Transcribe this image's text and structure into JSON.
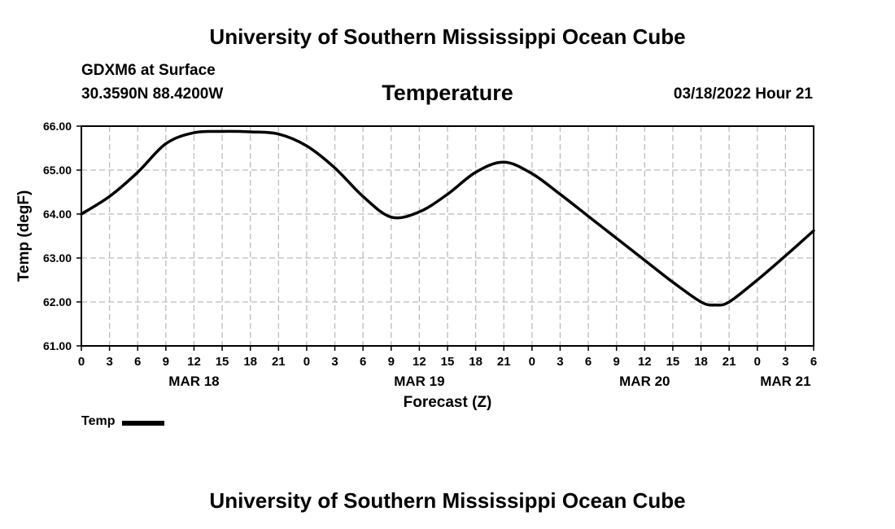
{
  "header": {
    "institution": "University of Southern Mississippi Ocean Cube",
    "station": "GDXM6 at Surface",
    "coords": "30.3590N  88.4200W",
    "datetime": "03/18/2022 Hour 21"
  },
  "footer": {
    "institution": "University of Southern Mississippi Ocean Cube"
  },
  "legend": {
    "label": "Temp",
    "color": "#000000"
  },
  "chart_data": {
    "type": "line",
    "title": "Temperature",
    "xlabel": "Forecast (Z)",
    "ylabel": "Temp (degF)",
    "ylim": [
      61.0,
      66.0
    ],
    "yticks": [
      "61.00",
      "62.00",
      "63.00",
      "64.00",
      "65.00",
      "66.00"
    ],
    "xlim_hours": [
      0,
      78
    ],
    "xtick_step_hours": 3,
    "xtick_labels": [
      "0",
      "3",
      "6",
      "9",
      "12",
      "15",
      "18",
      "21",
      "0",
      "3",
      "6",
      "9",
      "12",
      "15",
      "18",
      "21",
      "0",
      "3",
      "6",
      "9",
      "12",
      "15",
      "18",
      "21",
      "0",
      "3",
      "6"
    ],
    "day_labels": [
      {
        "label": "MAR 18",
        "hour": 12
      },
      {
        "label": "MAR 19",
        "hour": 36
      },
      {
        "label": "MAR 20",
        "hour": 60
      },
      {
        "label": "MAR 21",
        "hour": 75
      }
    ],
    "grid": true,
    "series": [
      {
        "name": "Temp",
        "color": "#000000",
        "x": [
          0,
          3,
          6,
          9,
          12,
          15,
          18,
          21,
          24,
          27,
          30,
          33,
          36,
          39,
          42,
          45,
          48,
          51,
          54,
          57,
          60,
          63,
          66,
          67.5,
          69,
          72,
          75,
          78
        ],
        "values": [
          64.0,
          64.4,
          64.95,
          65.6,
          65.85,
          65.88,
          65.87,
          65.82,
          65.55,
          65.05,
          64.4,
          63.93,
          64.05,
          64.45,
          64.95,
          65.18,
          64.92,
          64.45,
          63.95,
          63.45,
          62.95,
          62.45,
          62.0,
          61.93,
          62.0,
          62.5,
          63.05,
          63.62
        ]
      }
    ]
  }
}
